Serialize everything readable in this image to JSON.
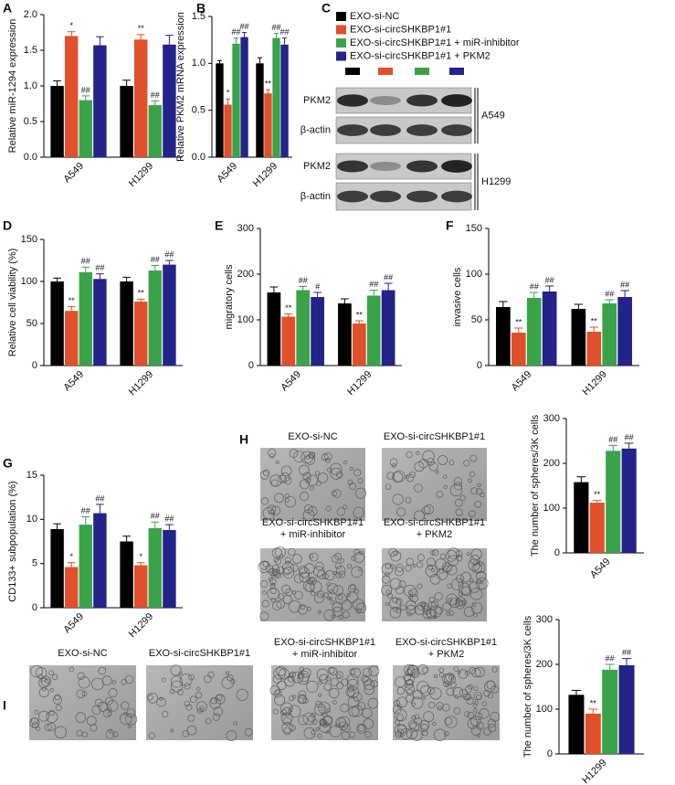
{
  "panel_labels": [
    "A",
    "B",
    "C",
    "D",
    "E",
    "F",
    "G",
    "H",
    "I"
  ],
  "legend": [
    {
      "name": "EXO-si-NC",
      "color": "#000000"
    },
    {
      "name": "EXO-si-circSHKBP1#1",
      "color": "#e0502a"
    },
    {
      "name": "EXO-si-circSHKBP1#1 + miR-inhibitor",
      "color": "#3aa34a"
    },
    {
      "name": "EXO-si-circSHKBP1#1 + PKM2",
      "color": "#23238a"
    }
  ],
  "blot": {
    "rows": [
      "PKM2",
      "β-actin",
      "PKM2",
      "β-actin"
    ],
    "cell_lines": [
      "A549",
      "H1299"
    ]
  },
  "images_h": [
    [
      "EXO-si-NC"
    ],
    [
      "EXO-si-circSHKBP1#1"
    ],
    [
      "EXO-si-circSHKBP1#1",
      "+ miR-inhibitor"
    ],
    [
      "EXO-si-circSHKBP1#1",
      "+ PKM2"
    ]
  ],
  "images_i": [
    [
      "EXO-si-NC"
    ],
    [
      "EXO-si-circSHKBP1#1"
    ],
    [
      "EXO-si-circSHKBP1#1",
      "+ miR-inhibitor"
    ],
    [
      "EXO-si-circSHKBP1#1",
      "+ PKM2"
    ]
  ],
  "chart_data": [
    {
      "type": "bar",
      "y_label": "Relative miR-1294 expression",
      "categories": [
        "A549",
        "H1299"
      ],
      "ylim": [
        0,
        2
      ],
      "yticks": [
        {
          "value": 0,
          "label": "0.0"
        },
        0.5,
        {
          "value": 1,
          "label": "1.0"
        },
        1.5,
        {
          "value": 2,
          "label": "2.0"
        }
      ],
      "series": [
        {
          "values": [
            1.0,
            1.0
          ],
          "errors": [
            0.07,
            0.08
          ],
          "marks": [
            null,
            null
          ]
        },
        {
          "values": [
            1.7,
            1.65
          ],
          "errors": [
            0.06,
            0.07
          ],
          "marks": [
            "*",
            "**"
          ]
        },
        {
          "values": [
            0.8,
            0.73
          ],
          "errors": [
            0.06,
            0.06
          ],
          "marks": [
            "##",
            "##"
          ]
        },
        {
          "values": [
            1.57,
            1.58
          ],
          "errors": [
            0.12,
            0.13
          ],
          "marks": [
            null,
            null
          ]
        }
      ]
    },
    {
      "type": "bar",
      "y_label": "Relative PKM2 mRNA expression",
      "categories": [
        "A549",
        "H1299"
      ],
      "ylim": [
        0,
        1.5
      ],
      "yticks": [
        {
          "value": 0,
          "label": "0.0"
        },
        0.5,
        {
          "value": 1,
          "label": "1.0"
        },
        1.5
      ],
      "series": [
        {
          "values": [
            1.0,
            1.0
          ],
          "errors": [
            0.03,
            0.06
          ],
          "marks": [
            null,
            null
          ]
        },
        {
          "values": [
            0.56,
            0.68
          ],
          "errors": [
            0.06,
            0.04
          ],
          "marks": [
            "*",
            "**"
          ]
        },
        {
          "values": [
            1.21,
            1.27
          ],
          "errors": [
            0.06,
            0.05
          ],
          "marks": [
            "##",
            "##"
          ]
        },
        {
          "values": [
            1.28,
            1.2
          ],
          "errors": [
            0.05,
            0.07
          ],
          "marks": [
            "##",
            "##"
          ]
        }
      ]
    },
    {
      "type": "bar",
      "y_label": "Relative cell viability (%)",
      "categories": [
        "A549",
        "H1299"
      ],
      "ylim": [
        0,
        150
      ],
      "yticks": [
        0,
        50,
        100,
        150
      ],
      "series": [
        {
          "values": [
            100,
            100
          ],
          "errors": [
            4,
            5
          ],
          "marks": [
            null,
            null
          ]
        },
        {
          "values": [
            65,
            76
          ],
          "errors": [
            5,
            3
          ],
          "marks": [
            "**",
            "**"
          ]
        },
        {
          "values": [
            111,
            113
          ],
          "errors": [
            6,
            6
          ],
          "marks": [
            "##",
            "##"
          ]
        },
        {
          "values": [
            103,
            120
          ],
          "errors": [
            6,
            5
          ],
          "marks": [
            "##",
            "##"
          ]
        }
      ]
    },
    {
      "type": "bar",
      "y_label": "migratory cells",
      "categories": [
        "A549",
        "H1299"
      ],
      "ylim": [
        0,
        300
      ],
      "yticks": [
        0,
        100,
        200,
        300
      ],
      "series": [
        {
          "values": [
            160,
            136
          ],
          "errors": [
            12,
            10
          ],
          "marks": [
            null,
            null
          ]
        },
        {
          "values": [
            107,
            92
          ],
          "errors": [
            6,
            6
          ],
          "marks": [
            "**",
            "**"
          ]
        },
        {
          "values": [
            165,
            153
          ],
          "errors": [
            8,
            12
          ],
          "marks": [
            "##",
            "##"
          ]
        },
        {
          "values": [
            150,
            165
          ],
          "errors": [
            10,
            15
          ],
          "marks": [
            "#",
            "##"
          ]
        }
      ]
    },
    {
      "type": "bar",
      "y_label": "invasive cells",
      "categories": [
        "A549",
        "H1299"
      ],
      "ylim": [
        0,
        150
      ],
      "yticks": [
        0,
        50,
        100,
        150
      ],
      "series": [
        {
          "values": [
            64,
            62
          ],
          "errors": [
            6,
            5
          ],
          "marks": [
            null,
            null
          ]
        },
        {
          "values": [
            36,
            37
          ],
          "errors": [
            5,
            5
          ],
          "marks": [
            "**",
            "**"
          ]
        },
        {
          "values": [
            74,
            68
          ],
          "errors": [
            6,
            4
          ],
          "marks": [
            "##",
            "##"
          ]
        },
        {
          "values": [
            81,
            75
          ],
          "errors": [
            6,
            7
          ],
          "marks": [
            "##",
            "##"
          ]
        }
      ]
    },
    {
      "type": "bar",
      "y_label": "CD133+ subpopulation (%)",
      "categories": [
        "A549",
        "H1299"
      ],
      "ylim": [
        0,
        15
      ],
      "yticks": [
        0,
        5,
        10,
        15
      ],
      "series": [
        {
          "values": [
            8.9,
            7.5
          ],
          "errors": [
            0.6,
            0.6
          ],
          "marks": [
            null,
            null
          ]
        },
        {
          "values": [
            4.6,
            4.8
          ],
          "errors": [
            0.5,
            0.3
          ],
          "marks": [
            "*",
            "*"
          ]
        },
        {
          "values": [
            9.4,
            9.0
          ],
          "errors": [
            0.9,
            0.7
          ],
          "marks": [
            "##",
            "##"
          ]
        },
        {
          "values": [
            10.7,
            8.8
          ],
          "errors": [
            1.0,
            0.6
          ],
          "marks": [
            "##",
            "##"
          ]
        }
      ]
    },
    {
      "type": "bar",
      "y_label": "The number of spheres/3K cells",
      "categories": [
        "A549"
      ],
      "ylim": [
        0,
        300
      ],
      "yticks": [
        0,
        100,
        200,
        300
      ],
      "series": [
        {
          "values": [
            158
          ],
          "errors": [
            12
          ],
          "marks": [
            null
          ]
        },
        {
          "values": [
            112
          ],
          "errors": [
            5
          ],
          "marks": [
            "**"
          ]
        },
        {
          "values": [
            228
          ],
          "errors": [
            12
          ],
          "marks": [
            "##"
          ]
        },
        {
          "values": [
            233
          ],
          "errors": [
            12
          ],
          "marks": [
            "##"
          ]
        }
      ]
    },
    {
      "type": "bar",
      "y_label": "The number of spheres/3K cells",
      "categories": [
        "H1299"
      ],
      "ylim": [
        0,
        300
      ],
      "yticks": [
        0,
        100,
        200,
        300
      ],
      "series": [
        {
          "values": [
            132
          ],
          "errors": [
            10
          ],
          "marks": [
            null
          ]
        },
        {
          "values": [
            90
          ],
          "errors": [
            10
          ],
          "marks": [
            "**"
          ]
        },
        {
          "values": [
            188
          ],
          "errors": [
            12
          ],
          "marks": [
            "##"
          ]
        },
        {
          "values": [
            198
          ],
          "errors": [
            15
          ],
          "marks": [
            "##"
          ]
        }
      ]
    }
  ]
}
